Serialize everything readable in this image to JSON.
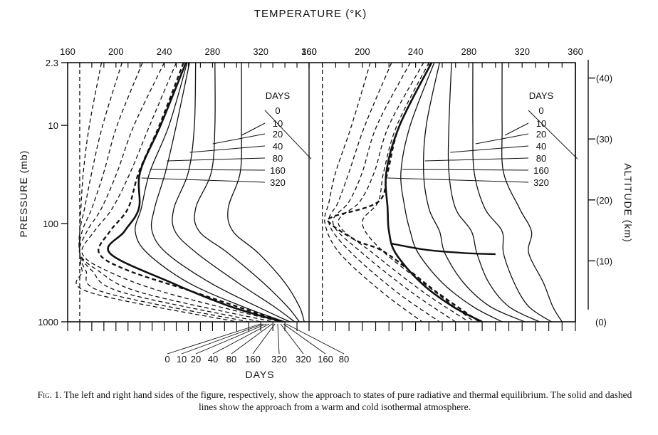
{
  "chart_data": {
    "type": "line",
    "title": "TEMPERATURE (°K)",
    "ylabel": "PRESSURE (mb)",
    "y2label": "ALTITUDE (km)",
    "bottom_label": "DAYS",
    "y_scale": "log",
    "ylim": [
      2.3,
      1000
    ],
    "y_ticks": [
      "2.3",
      "10",
      "100",
      "1000"
    ],
    "y2_ticks": [
      "(40)",
      "(30)",
      "(20)",
      "(10)",
      "(0)"
    ],
    "y2_tick_values": [
      40,
      30,
      20,
      10,
      0
    ],
    "grid": false,
    "legend": "none",
    "line_color": "#111111",
    "bottom_day_labels": [
      "0",
      "10",
      "20",
      "40",
      "80",
      "160",
      "320",
      "320",
      "160",
      "80",
      "40"
    ],
    "panels": [
      {
        "name": "pure radiative equilibrium",
        "xlim": [
          160,
          360
        ],
        "x_ticks": [
          "160",
          "200",
          "240",
          "280",
          "320",
          "360"
        ],
        "day_labels": [
          "DAYS",
          "0",
          "10",
          "20",
          "40",
          "80",
          "160",
          "320"
        ],
        "warm_start": {
          "initial_T": 360,
          "series": [
            {
              "day": 10,
              "p": [
                2.3,
                10,
                30,
                70,
                120,
                200,
                400,
                700,
                1000
              ],
              "T": [
                304,
                304,
                303,
                293,
                297,
                318,
                340,
                352,
                356
              ]
            },
            {
              "day": 20,
              "p": [
                2.3,
                10,
                30,
                70,
                120,
                200,
                400,
                700,
                1000
              ],
              "T": [
                282,
                282,
                279,
                266,
                269,
                293,
                322,
                342,
                352
              ]
            },
            {
              "day": 40,
              "p": [
                2.3,
                10,
                30,
                70,
                120,
                200,
                400,
                700,
                1000
              ],
              "T": [
                266,
                265,
                260,
                248,
                249,
                267,
                301,
                331,
                348
              ]
            },
            {
              "day": 80,
              "p": [
                2.3,
                10,
                30,
                70,
                120,
                200,
                400,
                700,
                1000
              ],
              "T": [
                261,
                250,
                241,
                232,
                230,
                242,
                278,
                317,
                344
              ]
            },
            {
              "day": 160,
              "p": [
                2.3,
                10,
                30,
                70,
                120,
                200,
                400,
                700,
                1000
              ],
              "T": [
                259,
                244,
                228,
                221,
                216,
                226,
                260,
                305,
                340
              ]
            },
            {
              "day": 320,
              "p": [
                2.3,
                10,
                30,
                70,
                120,
                200,
                400,
                700,
                1000
              ],
              "T": [
                258,
                237,
                220,
                219,
                207,
                195,
                246,
                295,
                338
              ]
            }
          ]
        },
        "cold_start": {
          "initial_T": 170,
          "series": [
            {
              "day": 10,
              "p": [
                2.3,
                10,
                30,
                70,
                120,
                200,
                300,
                500,
                1000
              ],
              "T": [
                188,
                178,
                173,
                171,
                170,
                170,
                172,
                178,
                300
              ]
            },
            {
              "day": 20,
              "p": [
                2.3,
                10,
                30,
                70,
                120,
                200,
                300,
                500,
                1000
              ],
              "T": [
                205,
                189,
                180,
                174,
                170,
                170,
                175,
                190,
                310
              ]
            },
            {
              "day": 40,
              "p": [
                2.3,
                10,
                30,
                70,
                120,
                200,
                300,
                500,
                1000
              ],
              "T": [
                222,
                201,
                190,
                180,
                172,
                170,
                180,
                205,
                320
              ]
            },
            {
              "day": 80,
              "p": [
                2.3,
                10,
                30,
                70,
                120,
                200,
                300,
                500,
                1000
              ],
              "T": [
                240,
                215,
                201,
                188,
                176,
                170,
                185,
                220,
                330
              ]
            },
            {
              "day": 160,
              "p": [
                2.3,
                10,
                30,
                70,
                120,
                200,
                300,
                500,
                1000
              ],
              "T": [
                250,
                228,
                212,
                197,
                182,
                172,
                192,
                240,
                336
              ]
            },
            {
              "day": 320,
              "p": [
                2.3,
                10,
                30,
                70,
                120,
                200,
                300,
                500,
                1000
              ],
              "T": [
                256,
                236,
                219,
                210,
                195,
                186,
                210,
                265,
                338
              ]
            }
          ]
        }
      },
      {
        "name": "thermal equilibrium",
        "xlim": [
          160,
          360
        ],
        "x_ticks": [
          "160",
          "200",
          "240",
          "280",
          "320",
          "360"
        ],
        "day_labels": [
          "DAYS",
          "0",
          "10",
          "20",
          "40",
          "80",
          "160",
          "320"
        ],
        "warm_start": {
          "initial_T": 360,
          "series": [
            {
              "day": 10,
              "p": [
                2.3,
                10,
                30,
                70,
                120,
                200,
                400,
                700,
                1000
              ],
              "T": [
                305,
                305,
                306,
                318,
                327,
                325,
                336,
                343,
                350
              ]
            },
            {
              "day": 20,
              "p": [
                2.3,
                10,
                30,
                70,
                120,
                200,
                400,
                700,
                1000
              ],
              "T": [
                283,
                283,
                284,
                292,
                305,
                306,
                314,
                325,
                342
              ]
            },
            {
              "day": 40,
              "p": [
                2.3,
                10,
                30,
                70,
                120,
                200,
                400,
                700,
                1000
              ],
              "T": [
                267,
                265,
                265,
                270,
                282,
                286,
                295,
                310,
                333
              ]
            },
            {
              "day": 80,
              "p": [
                2.3,
                10,
                30,
                70,
                120,
                200,
                400,
                700,
                1000
              ],
              "T": [
                258,
                248,
                246,
                250,
                258,
                262,
                276,
                296,
                322
              ]
            },
            {
              "day": 160,
              "p": [
                2.3,
                10,
                30,
                70,
                120,
                200,
                400,
                700,
                1000
              ],
              "T": [
                254,
                236,
                229,
                232,
                236,
                242,
                260,
                283,
                305
              ]
            },
            {
              "day": 320,
              "p": [
                2.3,
                10,
                30,
                70,
                120,
                200,
                400,
                700,
                1000
              ],
              "T": [
                252,
                228,
                218,
                219,
                220,
                225,
                244,
                268,
                290
              ]
            }
          ],
          "tropopause": {
            "p": [
              160,
              185,
              200,
              205
            ],
            "T": [
              222,
              248,
              278,
              300
            ]
          }
        },
        "cold_start": {
          "initial_T": 170,
          "series": [
            {
              "day": 10,
              "p": [
                2.3,
                10,
                30,
                60,
                100,
                200,
                500,
                1000
              ],
              "T": [
                206,
                192,
                180,
                175,
                172,
                183,
                215,
                245
              ]
            },
            {
              "day": 20,
              "p": [
                2.3,
                10,
                30,
                60,
                100,
                200,
                500,
                1000
              ],
              "T": [
                222,
                202,
                190,
                182,
                175,
                192,
                226,
                258
              ]
            },
            {
              "day": 40,
              "p": [
                2.3,
                10,
                30,
                60,
                100,
                200,
                500,
                1000
              ],
              "T": [
                236,
                211,
                200,
                190,
                178,
                200,
                237,
                270
              ]
            },
            {
              "day": 80,
              "p": [
                2.3,
                10,
                30,
                60,
                100,
                200,
                500,
                1000
              ],
              "T": [
                246,
                220,
                209,
                198,
                182,
                208,
                246,
                280
              ]
            },
            {
              "day": 160,
              "p": [
                2.3,
                10,
                30,
                60,
                100,
                200,
                500,
                1000
              ],
              "T": [
                250,
                226,
                216,
                212,
                200,
                217,
                255,
                284
              ]
            },
            {
              "day": 320,
              "p": [
                2.3,
                10,
                30,
                60,
                85,
                100,
                150,
                200,
                500,
                1000
              ],
              "T": [
                252,
                228,
                219,
                212,
                178,
                176,
                196,
                218,
                256,
                288
              ]
            }
          ]
        }
      }
    ]
  },
  "caption": {
    "label": "Fig. 1.",
    "text": "The left and right hand sides of the figure, respectively, show the approach to states of pure radiative and thermal equilibrium. The solid and dashed lines show the approach from a warm and cold isothermal atmosphere."
  }
}
